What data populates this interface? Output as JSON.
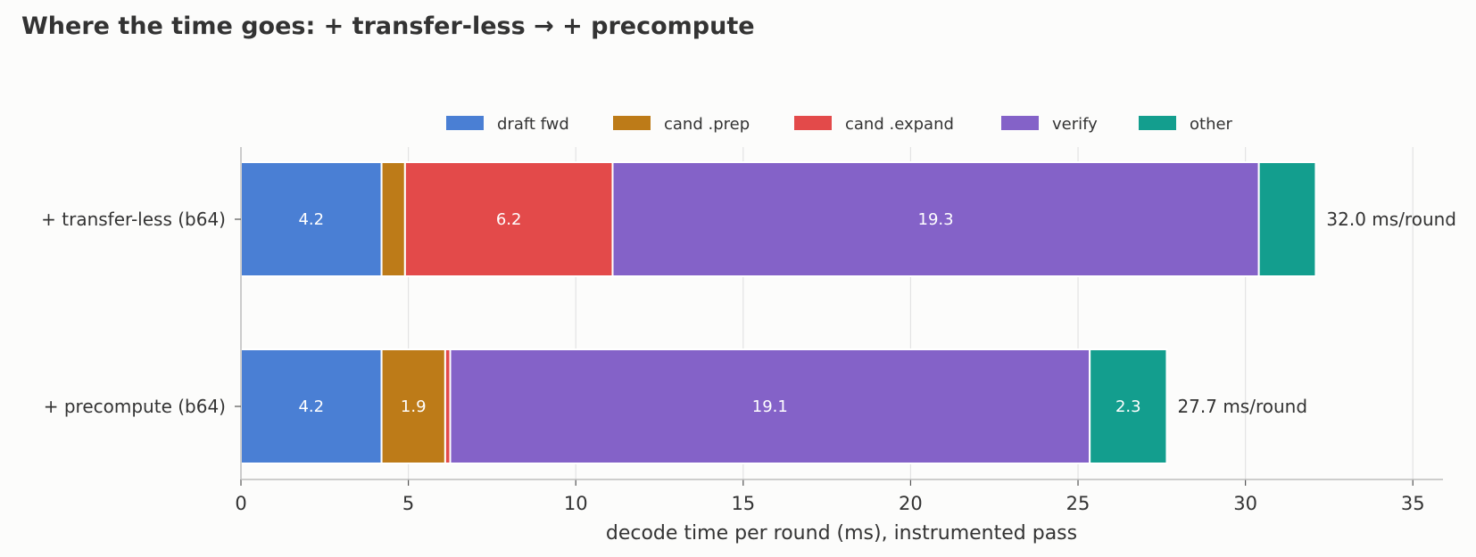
{
  "chart_data": {
    "type": "bar",
    "orientation": "horizontal",
    "stacked": true,
    "title": "Where the time goes: + transfer-less → + precompute",
    "xlabel": "decode time per round (ms), instrumented pass",
    "ylabel": "",
    "xlim": [
      0,
      35.9
    ],
    "xticks": [
      "0",
      "5",
      "10",
      "15",
      "20",
      "25",
      "30",
      "35"
    ],
    "grid": true,
    "legend_position": "top-center",
    "categories": [
      "+ transfer-less  (b64)",
      "+ precompute  (b64)"
    ],
    "series": [
      {
        "name": "draft fwd",
        "color": "#4a7fd4",
        "values": [
          4.2,
          4.2
        ],
        "labels": [
          "4.2",
          "4.2"
        ]
      },
      {
        "name": "cand .prep",
        "color": "#bd7b18",
        "values": [
          0.7,
          1.9
        ],
        "labels": [
          "",
          "1.9"
        ]
      },
      {
        "name": "cand .expand",
        "color": "#e34a4a",
        "values": [
          6.2,
          0.15
        ],
        "labels": [
          "6.2",
          ""
        ]
      },
      {
        "name": "verify",
        "color": "#8462c8",
        "values": [
          19.3,
          19.1
        ],
        "labels": [
          "19.3",
          "19.1"
        ]
      },
      {
        "name": "other",
        "color": "#139e8e",
        "values": [
          1.7,
          2.3
        ],
        "labels": [
          "",
          "2.3"
        ]
      }
    ],
    "totals": [
      "32.0 ms/round",
      "27.7 ms/round"
    ]
  }
}
